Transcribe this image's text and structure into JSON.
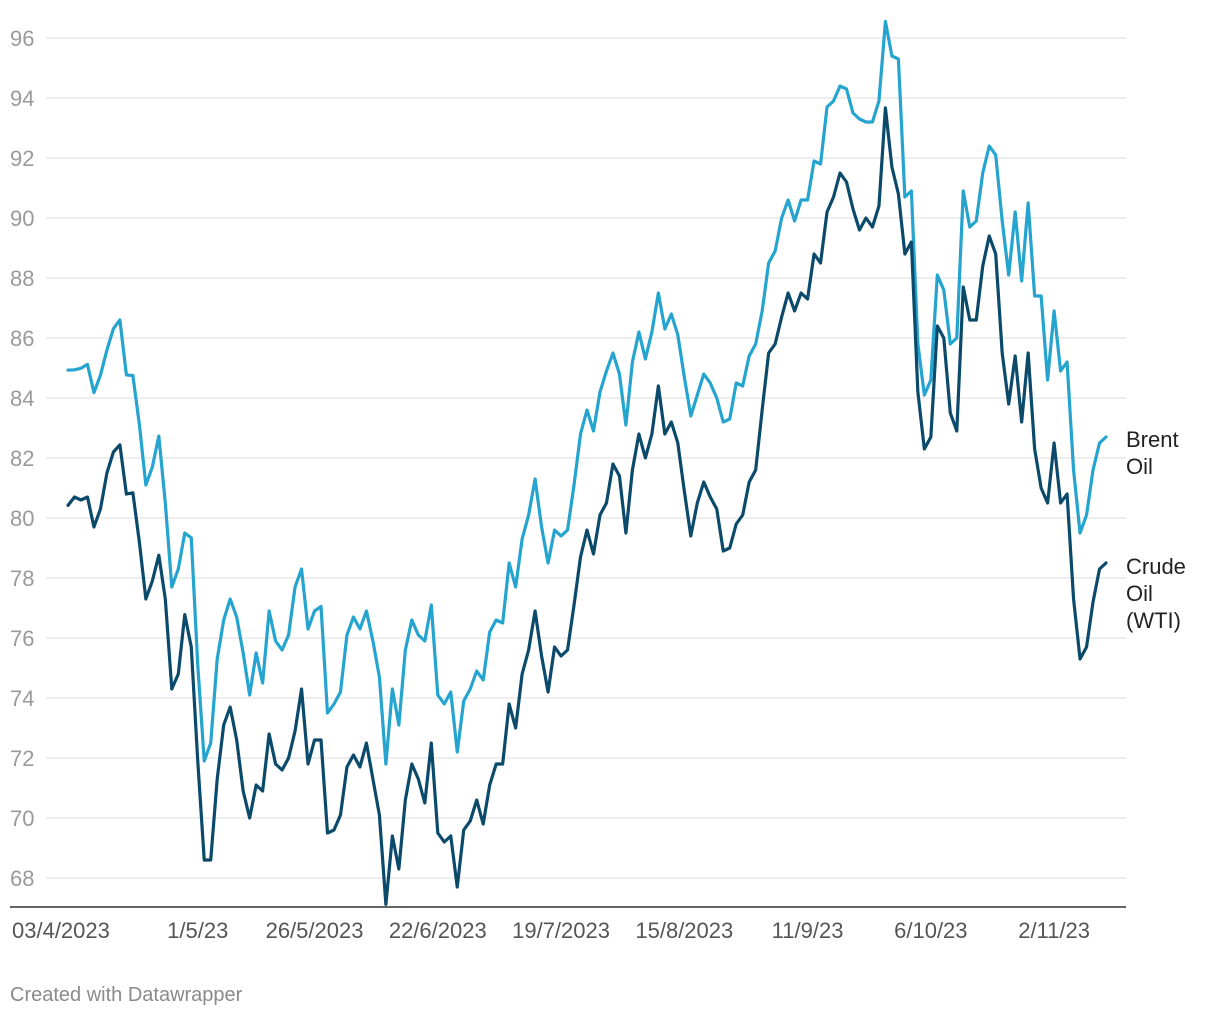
{
  "colors": {
    "brent": "#24a4cf",
    "wti": "#0b4a6b",
    "grid": "#dddddd",
    "axis": "#333333"
  },
  "credit": "Created with Datawrapper",
  "chart_data": {
    "type": "line",
    "title": "",
    "xlabel": "",
    "ylabel": "",
    "ylim": [
      67.3,
      96.6
    ],
    "yticks": [
      68,
      70,
      72,
      74,
      76,
      78,
      80,
      82,
      84,
      86,
      88,
      90,
      92,
      94,
      96
    ],
    "xticks": [
      "03/4/2023",
      "1/5/23",
      "26/5/2023",
      "22/6/2023",
      "19/7/2023",
      "15/8/2023",
      "11/9/23",
      "6/10/23",
      "2/11/23"
    ],
    "xtick_index": [
      0,
      20,
      38,
      57,
      76,
      95,
      114,
      133,
      152
    ],
    "grid": true,
    "legend": "inline-right",
    "series": [
      {
        "key": "brent",
        "label_lines": [
          "Brent",
          "Oil"
        ],
        "values": [
          84.93,
          84.94,
          84.99,
          85.12,
          84.18,
          84.76,
          85.6,
          86.31,
          86.6,
          84.77,
          84.75,
          83.12,
          81.1,
          81.7,
          82.73,
          80.5,
          77.7,
          78.3,
          79.5,
          79.34,
          75.1,
          71.9,
          72.5,
          75.3,
          76.6,
          77.3,
          76.7,
          75.5,
          74.1,
          75.5,
          74.5,
          76.9,
          75.9,
          75.6,
          76.1,
          77.7,
          78.3,
          76.3,
          76.9,
          77.05,
          73.5,
          73.8,
          74.2,
          76.1,
          76.7,
          76.3,
          76.9,
          75.9,
          74.7,
          71.8,
          74.3,
          73.1,
          75.6,
          76.6,
          76.1,
          75.9,
          77.1,
          74.1,
          73.8,
          74.2,
          72.2,
          73.9,
          74.3,
          74.9,
          74.6,
          76.2,
          76.6,
          76.5,
          78.5,
          77.7,
          79.3,
          80.1,
          81.3,
          79.7,
          78.5,
          79.6,
          79.4,
          79.6,
          81.1,
          82.8,
          83.6,
          82.9,
          84.2,
          84.9,
          85.5,
          84.8,
          83.1,
          85.2,
          86.2,
          85.3,
          86.2,
          87.5,
          86.3,
          86.8,
          86.1,
          84.7,
          83.4,
          84.1,
          84.8,
          84.5,
          84.0,
          83.2,
          83.3,
          84.5,
          84.4,
          85.4,
          85.8,
          86.9,
          88.5,
          88.9,
          90.0,
          90.6,
          89.9,
          90.6,
          90.6,
          91.9,
          91.8,
          93.7,
          93.9,
          94.4,
          94.3,
          93.5,
          93.3,
          93.2,
          93.2,
          93.9,
          96.55,
          95.4,
          95.3,
          90.7,
          90.9,
          85.8,
          84.1,
          84.6,
          88.1,
          87.6,
          85.8,
          86.0,
          90.9,
          89.7,
          89.9,
          91.5,
          92.4,
          92.1,
          89.9,
          88.1,
          90.2,
          87.9,
          90.5,
          87.4,
          87.4,
          84.6,
          86.9,
          84.9,
          85.2,
          81.6,
          79.5,
          80.1,
          81.6,
          82.5,
          82.7
        ]
      },
      {
        "key": "wti",
        "label_lines": [
          "Crude",
          "Oil",
          "(WTI)"
        ],
        "values": [
          80.42,
          80.7,
          80.6,
          80.7,
          79.7,
          80.3,
          81.5,
          82.2,
          82.44,
          80.8,
          80.84,
          79.2,
          77.3,
          77.9,
          78.76,
          77.3,
          74.3,
          74.8,
          76.78,
          75.7,
          71.9,
          68.6,
          68.6,
          71.3,
          73.1,
          73.7,
          72.6,
          70.9,
          70.0,
          71.1,
          70.9,
          72.8,
          71.8,
          71.6,
          72.0,
          72.9,
          74.3,
          71.8,
          72.6,
          72.6,
          69.5,
          69.6,
          70.1,
          71.7,
          72.1,
          71.7,
          72.5,
          71.3,
          70.1,
          67.12,
          69.4,
          68.3,
          70.6,
          71.8,
          71.3,
          70.5,
          72.5,
          69.5,
          69.2,
          69.4,
          67.7,
          69.6,
          69.9,
          70.6,
          69.8,
          71.1,
          71.8,
          71.8,
          73.8,
          73.0,
          74.8,
          75.6,
          76.9,
          75.4,
          74.2,
          75.7,
          75.4,
          75.6,
          77.1,
          78.7,
          79.6,
          78.8,
          80.1,
          80.5,
          81.8,
          81.4,
          79.5,
          81.6,
          82.8,
          82.0,
          82.8,
          84.4,
          82.8,
          83.2,
          82.5,
          80.9,
          79.4,
          80.5,
          81.2,
          80.7,
          80.3,
          78.9,
          79.0,
          79.8,
          80.1,
          81.2,
          81.6,
          83.6,
          85.5,
          85.8,
          86.7,
          87.5,
          86.9,
          87.5,
          87.3,
          88.8,
          88.5,
          90.2,
          90.7,
          91.5,
          91.2,
          90.3,
          89.6,
          90.0,
          89.7,
          90.4,
          93.67,
          91.7,
          90.8,
          88.8,
          89.2,
          84.2,
          82.3,
          82.7,
          86.4,
          86.0,
          83.5,
          82.9,
          87.7,
          86.6,
          86.6,
          88.4,
          89.4,
          88.8,
          85.5,
          83.8,
          85.4,
          83.2,
          85.5,
          82.3,
          81.0,
          80.5,
          82.5,
          80.5,
          80.8,
          77.3,
          75.3,
          75.7,
          77.2,
          78.3,
          78.5
        ]
      }
    ]
  }
}
